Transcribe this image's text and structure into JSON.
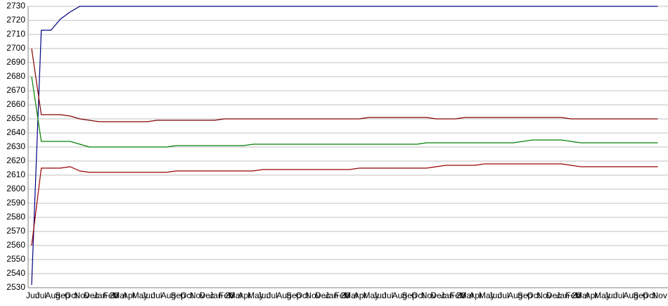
{
  "chart_data": {
    "type": "line",
    "categories": [
      "Jun",
      "Jul",
      "Aug",
      "Sep",
      "Oct",
      "Nov",
      "Dec",
      "Jan 20",
      "Feb",
      "Mar",
      "Apr",
      "May",
      "Jun",
      "Jul",
      "Aug",
      "Sep",
      "Oct",
      "Nov",
      "Dec",
      "Jan 20",
      "Feb",
      "Mar",
      "Apr",
      "May",
      "Jun",
      "Jul",
      "Aug",
      "Sep",
      "Oct",
      "Nov",
      "Dec",
      "Jan 20",
      "Feb",
      "Mar",
      "Apr",
      "May",
      "Jun",
      "Jul",
      "Aug",
      "Sep",
      "Oct",
      "Nov",
      "Dec",
      "Jan 20",
      "Feb",
      "Mar",
      "Apr",
      "May",
      "Jun",
      "Jul",
      "Aug",
      "Sep",
      "Oct",
      "Nov",
      "Dec",
      "Jan 20",
      "Feb",
      "Mar",
      "Apr",
      "May",
      "Jun",
      "Jul",
      "Aug",
      "Sep",
      "Oct",
      "Nov"
    ],
    "series": [
      {
        "color": "#000080",
        "values": [
          2532,
          2713,
          2713,
          2721,
          2726,
          2730,
          2730,
          2730,
          2730,
          2730,
          2730,
          2730,
          2730,
          2730,
          2730,
          2730,
          2730,
          2730,
          2730,
          2730,
          2730,
          2730,
          2730,
          2730,
          2730,
          2730,
          2730,
          2730,
          2730,
          2730,
          2730,
          2730,
          2730,
          2730,
          2730,
          2730,
          2730,
          2730,
          2730,
          2730,
          2730,
          2730,
          2730,
          2730,
          2730,
          2730,
          2730,
          2730,
          2730,
          2730,
          2730,
          2730,
          2730,
          2730,
          2730,
          2730,
          2730,
          2730,
          2730,
          2730,
          2730,
          2730,
          2730,
          2730,
          2730,
          2730
        ]
      },
      {
        "color": "#800000",
        "values": [
          2700,
          2653,
          2653,
          2653,
          2652,
          2650,
          2649,
          2648,
          2648,
          2648,
          2648,
          2648,
          2648,
          2649,
          2649,
          2649,
          2649,
          2649,
          2649,
          2649,
          2650,
          2650,
          2650,
          2650,
          2650,
          2650,
          2650,
          2650,
          2650,
          2650,
          2650,
          2650,
          2650,
          2650,
          2650,
          2651,
          2651,
          2651,
          2651,
          2651,
          2651,
          2651,
          2650,
          2650,
          2650,
          2651,
          2651,
          2651,
          2651,
          2651,
          2651,
          2651,
          2651,
          2651,
          2651,
          2651,
          2650,
          2650,
          2650,
          2650,
          2650,
          2650,
          2650,
          2650,
          2650,
          2650
        ]
      },
      {
        "color": "#008000",
        "values": [
          2680,
          2634,
          2634,
          2634,
          2634,
          2632,
          2630,
          2630,
          2630,
          2630,
          2630,
          2630,
          2630,
          2630,
          2630,
          2631,
          2631,
          2631,
          2631,
          2631,
          2631,
          2631,
          2631,
          2632,
          2632,
          2632,
          2632,
          2632,
          2632,
          2632,
          2632,
          2632,
          2632,
          2632,
          2632,
          2632,
          2632,
          2632,
          2632,
          2632,
          2632,
          2633,
          2633,
          2633,
          2633,
          2633,
          2633,
          2633,
          2633,
          2633,
          2633,
          2634,
          2635,
          2635,
          2635,
          2635,
          2634,
          2633,
          2633,
          2633,
          2633,
          2633,
          2633,
          2633,
          2633,
          2633
        ]
      },
      {
        "color": "#990000",
        "values": [
          2560,
          2615,
          2615,
          2615,
          2616,
          2613,
          2612,
          2612,
          2612,
          2612,
          2612,
          2612,
          2612,
          2612,
          2612,
          2613,
          2613,
          2613,
          2613,
          2613,
          2613,
          2613,
          2613,
          2613,
          2614,
          2614,
          2614,
          2614,
          2614,
          2614,
          2614,
          2614,
          2614,
          2614,
          2615,
          2615,
          2615,
          2615,
          2615,
          2615,
          2615,
          2615,
          2616,
          2617,
          2617,
          2617,
          2617,
          2618,
          2618,
          2618,
          2618,
          2618,
          2618,
          2618,
          2618,
          2618,
          2617,
          2616,
          2616,
          2616,
          2616,
          2616,
          2616,
          2616,
          2616,
          2616
        ]
      }
    ],
    "ylim": [
      2530,
      2730
    ],
    "yticks": [
      2530,
      2540,
      2550,
      2560,
      2570,
      2580,
      2590,
      2600,
      2610,
      2620,
      2630,
      2640,
      2650,
      2660,
      2670,
      2680,
      2690,
      2700,
      2710,
      2720,
      2730
    ],
    "grid": true
  }
}
